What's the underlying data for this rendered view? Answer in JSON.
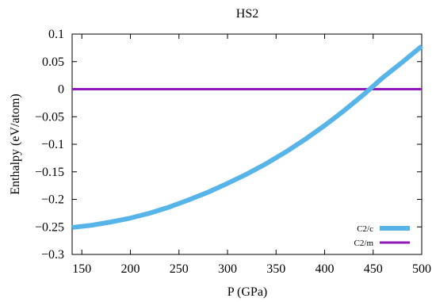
{
  "chart_data": {
    "type": "line",
    "title": "HS2",
    "xlabel": "P (GPa)",
    "ylabel": "Enthalpy (eV/atom)",
    "xlim": [
      140,
      500
    ],
    "ylim": [
      -0.3,
      0.1
    ],
    "x_ticks": [
      {
        "value": 150,
        "label": "150"
      },
      {
        "value": 200,
        "label": "200"
      },
      {
        "value": 250,
        "label": "250"
      },
      {
        "value": 300,
        "label": "300"
      },
      {
        "value": 350,
        "label": "350"
      },
      {
        "value": 400,
        "label": "400"
      },
      {
        "value": 450,
        "label": "450"
      },
      {
        "value": 500,
        "label": "500"
      }
    ],
    "y_ticks": [
      {
        "value": 0.1,
        "label": "0.1"
      },
      {
        "value": 0.05,
        "label": "0.05"
      },
      {
        "value": 0,
        "label": "0"
      },
      {
        "value": -0.05,
        "label": "−0.05"
      },
      {
        "value": -0.1,
        "label": "−0.1"
      },
      {
        "value": -0.15,
        "label": "−0.15"
      },
      {
        "value": -0.2,
        "label": "−0.2"
      },
      {
        "value": -0.25,
        "label": "−0.25"
      },
      {
        "value": -0.3,
        "label": "−0.3"
      }
    ],
    "grid": false,
    "legend_position": "bottom-right",
    "series": [
      {
        "name": "C2/c",
        "color": "#56b4e9",
        "x": [
          140,
          160,
          180,
          200,
          220,
          240,
          260,
          280,
          300,
          320,
          340,
          360,
          380,
          400,
          420,
          440,
          460,
          480,
          500
        ],
        "y": [
          -0.251,
          -0.247,
          -0.241,
          -0.234,
          -0.225,
          -0.214,
          -0.201,
          -0.187,
          -0.171,
          -0.154,
          -0.135,
          -0.114,
          -0.091,
          -0.066,
          -0.039,
          -0.01,
          0.021,
          0.049,
          0.078
        ]
      },
      {
        "name": "C2/m",
        "color": "#8f18b8",
        "x": [
          140,
          500
        ],
        "y": [
          0,
          0
        ]
      }
    ]
  }
}
